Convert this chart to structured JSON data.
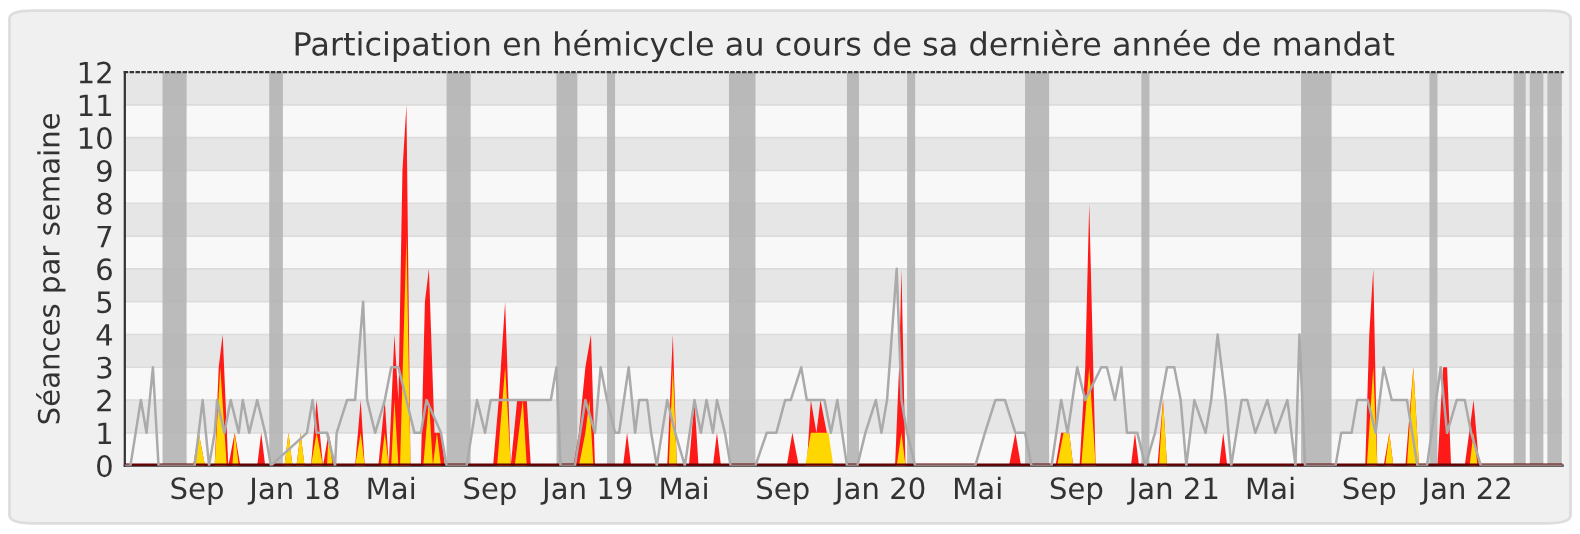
{
  "chart_data": {
    "type": "area",
    "title": "Participation en hémicycle au cours de sa dernière année de mandat",
    "ylabel": "Séances par semaine",
    "xlim": [
      "2017-06-03",
      "2022-04-30"
    ],
    "ylim": [
      0,
      12
    ],
    "yticks": [
      0,
      1,
      2,
      3,
      4,
      5,
      6,
      7,
      8,
      9,
      10,
      11,
      12
    ],
    "xticks": [
      {
        "value": "2017-09-01",
        "label": "Sep"
      },
      {
        "value": "2018-01-01",
        "label": "Jan 18"
      },
      {
        "value": "2018-05-01",
        "label": "Mai"
      },
      {
        "value": "2018-09-01",
        "label": "Sep"
      },
      {
        "value": "2019-01-01",
        "label": "Jan 19"
      },
      {
        "value": "2019-05-01",
        "label": "Mai"
      },
      {
        "value": "2019-09-01",
        "label": "Sep"
      },
      {
        "value": "2020-01-01",
        "label": "Jan 20"
      },
      {
        "value": "2020-05-01",
        "label": "Mai"
      },
      {
        "value": "2020-09-01",
        "label": "Sep"
      },
      {
        "value": "2021-01-01",
        "label": "Jan 21"
      },
      {
        "value": "2021-05-01",
        "label": "Mai"
      },
      {
        "value": "2021-09-01",
        "label": "Sep"
      },
      {
        "value": "2022-01-01",
        "label": "Jan 22"
      }
    ],
    "grid": "y",
    "bands": [
      {
        "axis": "x",
        "from": "2017-07-20",
        "to": "2017-08-19",
        "color": "#b4b4b4"
      },
      {
        "axis": "x",
        "from": "2017-11-30",
        "to": "2017-12-17",
        "color": "#b4b4b4"
      },
      {
        "axis": "x",
        "from": "2018-07-09",
        "to": "2018-08-08",
        "color": "#b4b4b4"
      },
      {
        "axis": "x",
        "from": "2018-11-23",
        "to": "2018-12-19",
        "color": "#b4b4b4"
      },
      {
        "axis": "x",
        "from": "2019-01-25",
        "to": "2019-02-04",
        "color": "#b4b4b4"
      },
      {
        "axis": "x",
        "from": "2019-06-26",
        "to": "2019-07-29",
        "color": "#b4b4b4"
      },
      {
        "axis": "x",
        "from": "2019-11-20",
        "to": "2019-12-05",
        "color": "#b4b4b4"
      },
      {
        "axis": "x",
        "from": "2020-02-03",
        "to": "2020-02-13",
        "color": "#b4b4b4"
      },
      {
        "axis": "x",
        "from": "2020-06-29",
        "to": "2020-07-29",
        "color": "#b4b4b4"
      },
      {
        "axis": "x",
        "from": "2020-11-21",
        "to": "2020-12-01",
        "color": "#b4b4b4"
      },
      {
        "axis": "x",
        "from": "2021-06-08",
        "to": "2021-07-16",
        "color": "#b4b4b4"
      },
      {
        "axis": "x",
        "from": "2021-11-15",
        "to": "2021-11-25",
        "color": "#b4b4b4"
      },
      {
        "axis": "x",
        "from": "2022-02-28",
        "to": "2022-03-15",
        "color": "#b4b4b4"
      },
      {
        "axis": "x",
        "from": "2022-03-20",
        "to": "2022-04-06",
        "color": "#b4b4b4"
      },
      {
        "axis": "x",
        "from": "2022-04-11",
        "to": "2022-04-29",
        "color": "#b4b4b4"
      }
    ],
    "series": [
      {
        "color": "#ff1a1a",
        "x": [
          "2017-06-03",
          "2017-08-27",
          "2017-09-03",
          "2017-09-11",
          "2017-09-23",
          "2017-09-28",
          "2017-10-03",
          "2017-10-10",
          "2017-10-18",
          "2017-10-25",
          "2017-11-15",
          "2017-11-20",
          "2017-11-25",
          "2017-12-19",
          "2017-12-24",
          "2017-12-29",
          "2018-01-03",
          "2018-01-08",
          "2018-01-13",
          "2018-01-21",
          "2018-01-28",
          "2018-02-05",
          "2018-02-12",
          "2018-02-20",
          "2018-03-17",
          "2018-03-24",
          "2018-03-29",
          "2018-04-15",
          "2018-04-23",
          "2018-04-28",
          "2018-05-05",
          "2018-05-10",
          "2018-05-15",
          "2018-05-20",
          "2018-05-25",
          "2018-06-07",
          "2018-06-12",
          "2018-06-17",
          "2018-06-24",
          "2018-07-02",
          "2018-07-07",
          "2018-09-05",
          "2018-09-12",
          "2018-09-20",
          "2018-09-27",
          "2018-10-05",
          "2018-10-17",
          "2018-10-22",
          "2018-12-14",
          "2018-12-21",
          "2018-12-29",
          "2019-01-05",
          "2019-01-10",
          "2019-02-14",
          "2019-02-19",
          "2019-02-24",
          "2019-04-10",
          "2019-04-17",
          "2019-04-22",
          "2019-05-07",
          "2019-05-14",
          "2019-05-19",
          "2019-06-06",
          "2019-06-11",
          "2019-06-16",
          "2019-09-06",
          "2019-09-13",
          "2019-09-21",
          "2019-10-01",
          "2019-10-06",
          "2019-10-13",
          "2019-10-18",
          "2019-10-26",
          "2019-10-31",
          "2020-01-19",
          "2020-01-24",
          "2020-01-27",
          "2020-02-01",
          "2020-06-09",
          "2020-06-17",
          "2020-06-24",
          "2020-08-06",
          "2020-08-13",
          "2020-08-23",
          "2020-08-28",
          "2020-09-05",
          "2020-09-12",
          "2020-09-17",
          "2020-09-25",
          "2020-11-08",
          "2020-11-13",
          "2020-11-18",
          "2020-12-11",
          "2020-12-18",
          "2020-12-23",
          "2021-02-26",
          "2021-03-03",
          "2021-03-08",
          "2021-08-27",
          "2021-09-01",
          "2021-09-06",
          "2021-09-11",
          "2021-09-19",
          "2021-09-26",
          "2021-10-01",
          "2021-10-16",
          "2021-10-26",
          "2021-11-02",
          "2021-11-25",
          "2021-12-02",
          "2021-12-07",
          "2021-12-12",
          "2021-12-29",
          "2022-01-09",
          "2022-01-16",
          "2022-04-30"
        ],
        "values": [
          0,
          0,
          1,
          0,
          0,
          3,
          4,
          0,
          1,
          0,
          0,
          1,
          0,
          0,
          1,
          0,
          0,
          1,
          0,
          0,
          2,
          0,
          1,
          0,
          0,
          2,
          0,
          0,
          2,
          0,
          4,
          2,
          9,
          11,
          0,
          0,
          5,
          6,
          1,
          1,
          0,
          0,
          2,
          5,
          0,
          2,
          2,
          0,
          0,
          1,
          3,
          4,
          0,
          0,
          1,
          0,
          0,
          4,
          0,
          0,
          2,
          0,
          0,
          1,
          0,
          0,
          1,
          0,
          0,
          2,
          1,
          2,
          1,
          0,
          0,
          3,
          6,
          0,
          0,
          1,
          0,
          0,
          1,
          1,
          0,
          0,
          3,
          8,
          0,
          0,
          1,
          0,
          0,
          2,
          0,
          0,
          1,
          0,
          0,
          4,
          6,
          0,
          0,
          1,
          0,
          0,
          3,
          0,
          0,
          3,
          3,
          0,
          0,
          2,
          0,
          0
        ]
      },
      {
        "color": "#ffd700",
        "x": [
          "2017-06-03",
          "2017-08-27",
          "2017-09-03",
          "2017-09-11",
          "2017-09-23",
          "2017-09-30",
          "2017-10-08",
          "2017-10-15",
          "2017-10-18",
          "2017-10-23",
          "2017-12-19",
          "2017-12-24",
          "2017-12-29",
          "2018-01-03",
          "2018-01-08",
          "2018-01-13",
          "2018-01-21",
          "2018-01-28",
          "2018-02-05",
          "2018-02-10",
          "2018-02-12",
          "2018-02-17",
          "2018-03-17",
          "2018-03-24",
          "2018-03-29",
          "2018-04-18",
          "2018-04-23",
          "2018-04-28",
          "2018-05-01",
          "2018-05-05",
          "2018-05-10",
          "2018-05-12",
          "2018-05-20",
          "2018-05-25",
          "2018-06-10",
          "2018-06-17",
          "2018-06-22",
          "2018-06-27",
          "2018-07-02",
          "2018-09-10",
          "2018-09-20",
          "2018-09-27",
          "2018-10-02",
          "2018-10-07",
          "2018-10-12",
          "2018-10-17",
          "2018-12-21",
          "2018-12-29",
          "2019-01-03",
          "2019-01-08",
          "2019-04-12",
          "2019-04-17",
          "2019-04-22",
          "2019-09-29",
          "2019-10-06",
          "2019-10-28",
          "2019-11-03",
          "2020-01-21",
          "2020-01-27",
          "2020-02-01",
          "2020-08-08",
          "2020-08-16",
          "2020-08-23",
          "2020-08-28",
          "2020-09-07",
          "2020-09-17",
          "2020-09-25",
          "2020-12-13",
          "2020-12-18",
          "2020-12-23",
          "2021-08-29",
          "2021-09-06",
          "2021-09-11",
          "2021-09-21",
          "2021-09-26",
          "2021-10-01",
          "2021-10-18",
          "2021-10-26",
          "2021-11-02",
          "2022-01-04",
          "2022-01-09",
          "2022-01-14",
          "2022-04-30"
        ],
        "values": [
          0,
          0,
          1,
          0,
          0,
          3,
          0,
          0,
          1,
          0,
          0,
          1,
          0,
          0,
          1,
          0,
          0,
          1,
          0,
          0,
          1,
          0,
          0,
          1,
          0,
          0,
          1,
          0,
          0,
          2,
          0,
          0,
          7,
          0,
          0,
          2,
          0,
          1,
          0,
          0,
          3,
          0,
          0,
          1,
          2,
          0,
          0,
          1,
          2,
          0,
          0,
          3,
          0,
          0,
          1,
          1,
          0,
          0,
          1,
          0,
          0,
          1,
          1,
          0,
          0,
          3,
          0,
          0,
          2,
          0,
          0,
          3,
          0,
          0,
          1,
          0,
          0,
          3,
          0,
          0,
          1,
          0,
          0
        ]
      },
      {
        "type": "line",
        "color": "#aaaaaa",
        "x": [
          "2017-06-03",
          "2017-06-10",
          "2017-06-23",
          "2017-06-30",
          "2017-07-08",
          "2017-07-15",
          "2017-08-29",
          "2017-09-08",
          "2017-09-16",
          "2017-09-23",
          "2017-09-26",
          "2017-10-05",
          "2017-10-13",
          "2017-10-23",
          "2017-10-28",
          "2017-11-05",
          "2017-11-15",
          "2017-11-25",
          "2017-12-02",
          "2018-01-16",
          "2018-01-23",
          "2018-01-28",
          "2018-02-10",
          "2018-02-20",
          "2018-02-22",
          "2018-03-07",
          "2018-03-17",
          "2018-03-27",
          "2018-04-01",
          "2018-04-11",
          "2018-04-23",
          "2018-05-01",
          "2018-05-10",
          "2018-05-20",
          "2018-05-30",
          "2018-06-07",
          "2018-06-14",
          "2018-07-02",
          "2018-07-09",
          "2018-08-03",
          "2018-08-16",
          "2018-08-26",
          "2018-09-02",
          "2018-09-22",
          "2018-10-10",
          "2018-11-16",
          "2018-11-23",
          "2018-11-28",
          "2018-12-16",
          "2018-12-29",
          "2019-01-10",
          "2019-01-17",
          "2019-01-25",
          "2019-02-04",
          "2019-02-09",
          "2019-02-21",
          "2019-03-01",
          "2019-03-06",
          "2019-03-16",
          "2019-03-21",
          "2019-03-28",
          "2019-04-10",
          "2019-04-20",
          "2019-05-02",
          "2019-05-14",
          "2019-05-22",
          "2019-05-29",
          "2019-06-06",
          "2019-06-11",
          "2019-06-21",
          "2019-06-28",
          "2019-07-29",
          "2019-08-12",
          "2019-08-24",
          "2019-09-04",
          "2019-09-11",
          "2019-09-24",
          "2019-10-01",
          "2019-10-11",
          "2019-10-23",
          "2019-10-31",
          "2019-11-08",
          "2019-11-20",
          "2019-12-03",
          "2019-12-13",
          "2019-12-26",
          "2020-01-02",
          "2020-01-09",
          "2020-01-21",
          "2020-01-27",
          "2020-02-03",
          "2020-02-13",
          "2020-04-28",
          "2020-05-10",
          "2020-05-23",
          "2020-06-04",
          "2020-06-17",
          "2020-06-29",
          "2020-07-07",
          "2020-08-01",
          "2020-08-13",
          "2020-08-21",
          "2020-09-02",
          "2020-09-12",
          "2020-10-02",
          "2020-10-09",
          "2020-10-19",
          "2020-10-27",
          "2020-11-03",
          "2020-11-16",
          "2020-11-26",
          "2020-12-08",
          "2020-12-23",
          "2021-01-01",
          "2021-01-09",
          "2021-01-16",
          "2021-01-26",
          "2021-02-09",
          "2021-02-16",
          "2021-02-24",
          "2021-03-06",
          "2021-03-13",
          "2021-03-26",
          "2021-04-02",
          "2021-04-12",
          "2021-04-27",
          "2021-05-07",
          "2021-05-22",
          "2021-06-01",
          "2021-06-06",
          "2021-06-13",
          "2021-07-21",
          "2021-07-28",
          "2021-08-10",
          "2021-08-17",
          "2021-08-30",
          "2021-09-09",
          "2021-09-19",
          "2021-09-29",
          "2021-10-11",
          "2021-10-18",
          "2021-10-31",
          "2021-11-12",
          "2021-11-29",
          "2021-12-07",
          "2021-12-19",
          "2021-12-29",
          "2022-01-06",
          "2022-01-18",
          "2022-04-30"
        ],
        "values": [
          0,
          0,
          2,
          1,
          3,
          0,
          0,
          2,
          0,
          1,
          2,
          1,
          2,
          1,
          2,
          1,
          2,
          1,
          0,
          1,
          2,
          1,
          1,
          0,
          1,
          2,
          2,
          5,
          2,
          1,
          2,
          3,
          3,
          2,
          1,
          1,
          2,
          1,
          0,
          0,
          2,
          1,
          2,
          2,
          2,
          2,
          3,
          0,
          0,
          2,
          1,
          3,
          2,
          1,
          1,
          3,
          1,
          2,
          2,
          1,
          0,
          2,
          1,
          0,
          2,
          1,
          2,
          1,
          2,
          1,
          0,
          0,
          1,
          1,
          2,
          2,
          3,
          2,
          2,
          2,
          1,
          2,
          0,
          0,
          1,
          2,
          1,
          2,
          6,
          2,
          1,
          0,
          0,
          1,
          2,
          2,
          1,
          1,
          0,
          0,
          2,
          1,
          3,
          2,
          3,
          3,
          2,
          3,
          1,
          1,
          0,
          1,
          3,
          3,
          2,
          0,
          2,
          1,
          2,
          4,
          2,
          0,
          2,
          2,
          1,
          2,
          1,
          2,
          0,
          4,
          0,
          0,
          1,
          1,
          2,
          2,
          1,
          3,
          2,
          2,
          2,
          0,
          0,
          3,
          1,
          2,
          2,
          1,
          0,
          0
        ]
      }
    ]
  }
}
